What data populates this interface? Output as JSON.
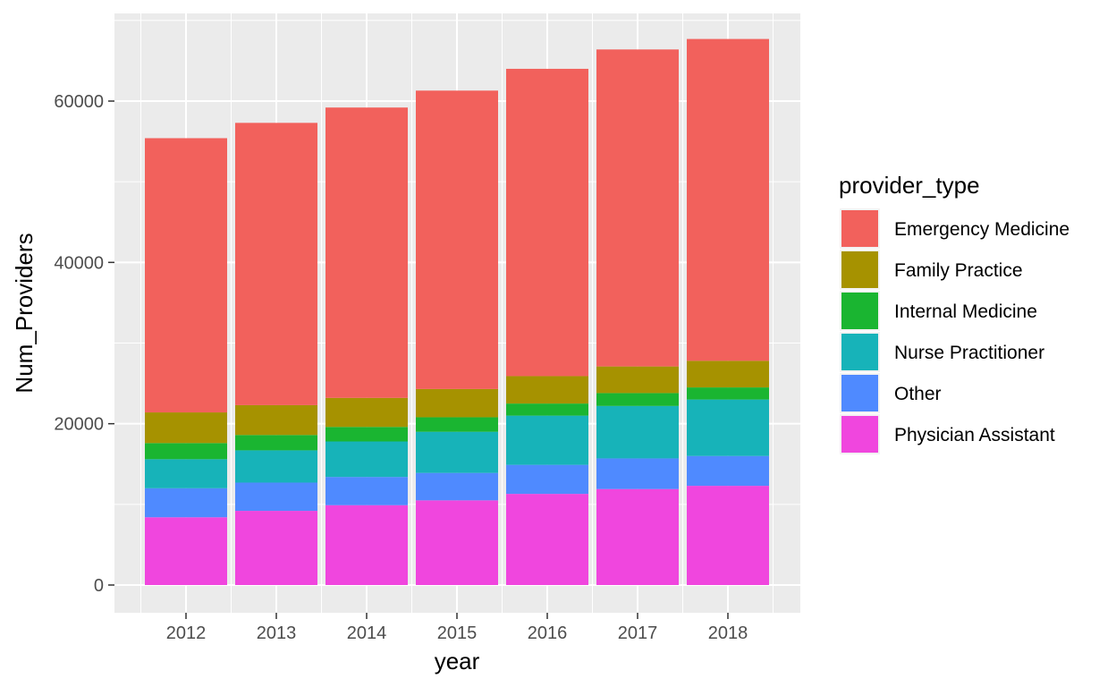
{
  "chart_data": {
    "type": "bar",
    "stacked": true,
    "xlabel": "year",
    "ylabel": "Num_Providers",
    "ylim": [
      0,
      68000
    ],
    "y_ticks": [
      0,
      20000,
      40000,
      60000
    ],
    "y_tick_labels": [
      "0",
      "20000",
      "40000",
      "60000"
    ],
    "categories": [
      "2012",
      "2013",
      "2014",
      "2015",
      "2016",
      "2017",
      "2018"
    ],
    "grid": true,
    "legend": {
      "title": "provider_type",
      "placement": "right"
    },
    "series": [
      {
        "name": "Physician Assistant",
        "color": "#F046DE",
        "values": [
          8400,
          9200,
          9900,
          10500,
          11300,
          11900,
          12300
        ]
      },
      {
        "name": "Other",
        "color": "#4F8AFF",
        "values": [
          3600,
          3500,
          3500,
          3400,
          3600,
          3800,
          3700
        ]
      },
      {
        "name": "Nurse Practitioner",
        "color": "#17B3B9",
        "values": [
          3600,
          4000,
          4400,
          5100,
          6100,
          6500,
          7000
        ]
      },
      {
        "name": "Internal Medicine",
        "color": "#1AB531",
        "values": [
          2000,
          1900,
          1800,
          1800,
          1500,
          1600,
          1500
        ]
      },
      {
        "name": "Family Practice",
        "color": "#A69200",
        "values": [
          3800,
          3700,
          3600,
          3500,
          3400,
          3300,
          3300
        ]
      },
      {
        "name": "Emergency Medicine",
        "color": "#F2615C",
        "values": [
          34000,
          35000,
          36000,
          37000,
          38100,
          39300,
          39900
        ]
      }
    ],
    "legend_order": [
      "Emergency Medicine",
      "Family Practice",
      "Internal Medicine",
      "Nurse Practitioner",
      "Other",
      "Physician Assistant"
    ]
  }
}
